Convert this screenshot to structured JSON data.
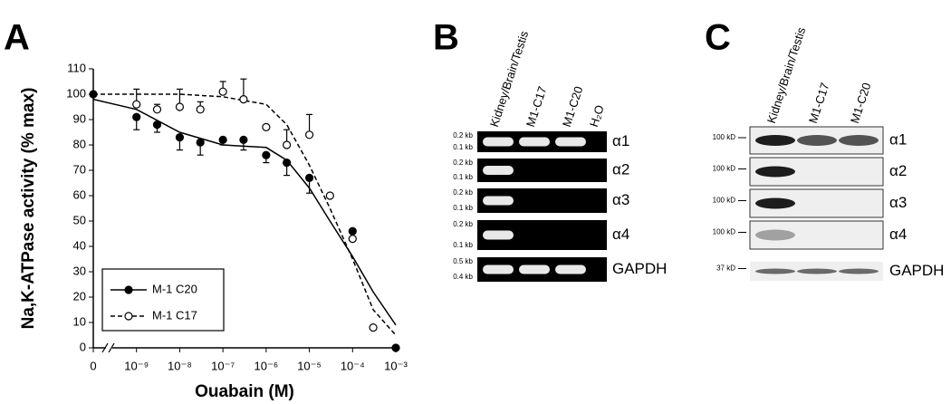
{
  "chart_data": {
    "type": "scatter",
    "panel_label": "A",
    "x_label": "Ouabain (M)",
    "y_label": "Na,K-ATPase activity (% max)",
    "log_x": true,
    "x_break": true,
    "xlim": [
      1e-10,
      0.001
    ],
    "xticks": [
      {
        "value": 0,
        "label": "0"
      },
      {
        "value": 1e-09,
        "label": "10⁻⁹"
      },
      {
        "value": 1e-08,
        "label": "10⁻⁸"
      },
      {
        "value": 1e-07,
        "label": "10⁻⁷"
      },
      {
        "value": 1e-06,
        "label": "10⁻⁶"
      },
      {
        "value": 1e-05,
        "label": "10⁻⁵"
      },
      {
        "value": 0.0001,
        "label": "10⁻⁴"
      },
      {
        "value": 0.001,
        "label": "10⁻³"
      }
    ],
    "ylim": [
      0,
      110
    ],
    "yticks": [
      0,
      10,
      20,
      30,
      40,
      50,
      60,
      70,
      80,
      90,
      100,
      110
    ],
    "x": [
      0,
      1e-09,
      3e-09,
      1e-08,
      3e-08,
      1e-07,
      3e-07,
      1e-06,
      3e-06,
      1e-05,
      3e-05,
      0.0001,
      0.0003,
      0.001
    ],
    "fit_x": [
      0,
      1e-09,
      1e-08,
      1e-07,
      1e-06,
      3e-06,
      1e-05,
      3e-05,
      0.0001,
      0.0003,
      0.001
    ],
    "legend": "lower left",
    "series": [
      {
        "name": "M-1 C20",
        "color": "#000000",
        "marker": "filled",
        "line_style": "solid",
        "error_direction": "down",
        "values": [
          100,
          91,
          88,
          83,
          81,
          82,
          82,
          76,
          73,
          67,
          null,
          46,
          null,
          0
        ],
        "errors": [
          null,
          5,
          3,
          5,
          5,
          2,
          4,
          3,
          5,
          6,
          null,
          3,
          null,
          null
        ],
        "fit_values": [
          98,
          94,
          85,
          80,
          79,
          74,
          63,
          50,
          36,
          22,
          9
        ]
      },
      {
        "name": "M-1 C17",
        "color": "#000000",
        "marker": "open",
        "line_style": "dashed",
        "error_direction": "up",
        "values": [
          null,
          96,
          94,
          95,
          94,
          101,
          98,
          87,
          80,
          84,
          60,
          43,
          8,
          null
        ],
        "errors": [
          null,
          6,
          2,
          7,
          3,
          4,
          8,
          null,
          6,
          8,
          null,
          3,
          null,
          null
        ],
        "fit_values": [
          100,
          100,
          100,
          99,
          96,
          88,
          72,
          55,
          35,
          15,
          5
        ]
      }
    ]
  },
  "panel_b": {
    "label": "B",
    "lanes": [
      "Kidney/Brain/Testis",
      "M1-C17",
      "M1-C20",
      "H₂O"
    ],
    "rows": [
      {
        "label": "α1",
        "markers": [
          "0.2 kb",
          "0.1 kb"
        ]
      },
      {
        "label": "α2",
        "markers": [
          "0.2 kb",
          "0.1 kb"
        ]
      },
      {
        "label": "α3",
        "markers": [
          "0.2 kb",
          "0.1 kb"
        ]
      },
      {
        "label": "α4",
        "markers": [
          "0.2 kb",
          "0.1 kb"
        ]
      },
      {
        "label": "GAPDH",
        "markers": [
          "0.5 kb",
          "0.4 kb"
        ]
      }
    ]
  },
  "panel_c": {
    "label": "C",
    "lanes": [
      "Kidney/Brain/Testis",
      "M1-C17",
      "M1-C20"
    ],
    "rows": [
      {
        "label": "α1",
        "marker": "100 kD"
      },
      {
        "label": "α2",
        "marker": "100 kD"
      },
      {
        "label": "α3",
        "marker": "100 kD"
      },
      {
        "label": "α4",
        "marker": "100 kD"
      },
      {
        "label": "GAPDH",
        "marker": "37 kD"
      }
    ]
  }
}
